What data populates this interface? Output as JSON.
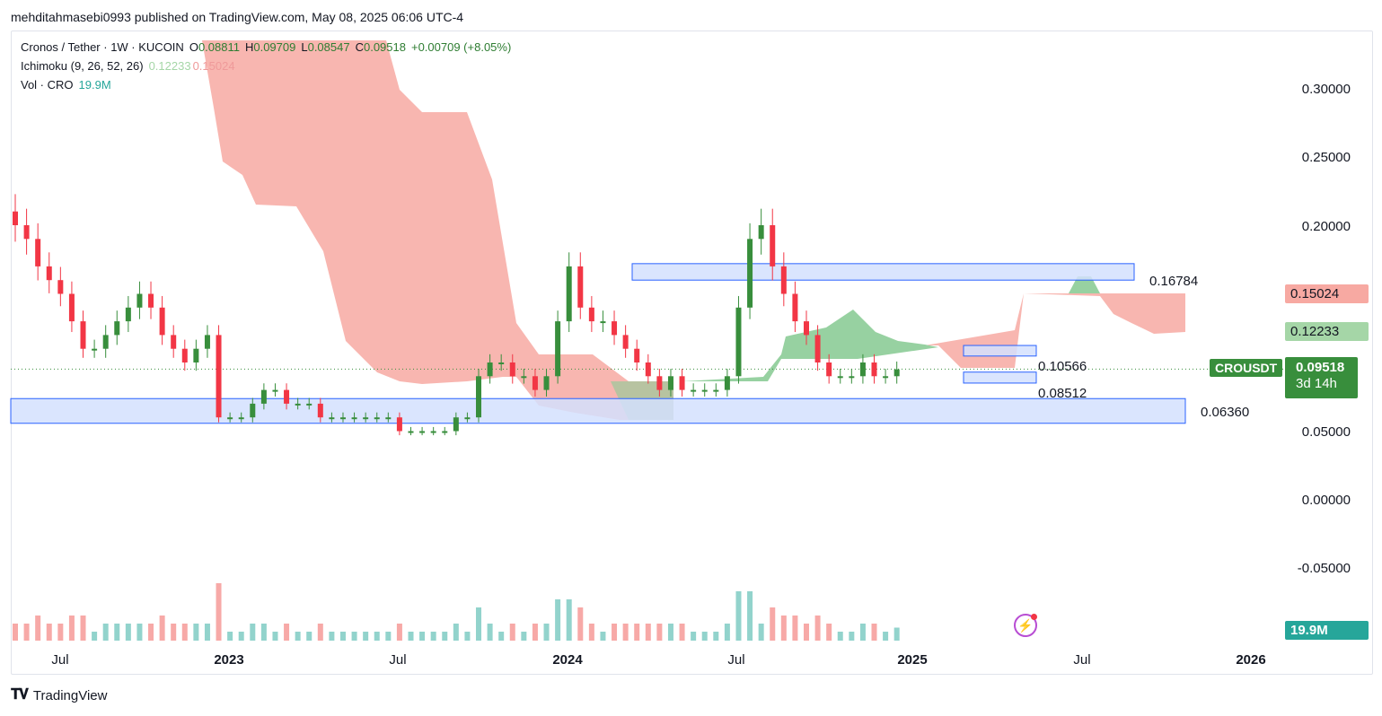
{
  "header": {
    "publisher_line": "mehditahmasebi0993 published on TradingView.com, May 08, 2025 06:06 UTC-4"
  },
  "legend": {
    "symbol": "Cronos / Tether · 1W · KUCOIN",
    "o_label": "O",
    "o_value": "0.08811",
    "h_label": "H",
    "h_value": "0.09709",
    "l_label": "L",
    "l_value": "0.08547",
    "c_label": "C",
    "c_value": "0.09518",
    "change": "+0.00709 (+8.05%)",
    "ichimoku_label": "Ichimoku (9, 26, 52, 26)",
    "ichimoku_v1": "0.12233",
    "ichimoku_v2": "0.15024",
    "vol_label": "Vol · CRO",
    "vol_value": "19.9M"
  },
  "price_boxes": {
    "lead_b": "0.15024",
    "lead_a": "0.12233",
    "symbol_tag": "CROUSDT",
    "last_price": "0.09518",
    "countdown": "3d 14h",
    "volume": "19.9M"
  },
  "annotations": {
    "level_1": "0.16784",
    "level_2": "0.10566",
    "level_3": "0.08512",
    "level_4": "0.06360"
  },
  "footer": {
    "brand": "TradingView",
    "logo": "TV-logo"
  },
  "icons": {
    "assistant": "lightning-bolt-icon"
  },
  "colors": {
    "up": "#26a69a",
    "candle_up": "#388e3c",
    "down": "#f23645",
    "vol_up": "#92d3cc",
    "vol_down": "#f7a9a7",
    "cloud_bear": "#f7a9a2",
    "cloud_bull": "#8ccc97",
    "zone_fill": "#d4e0fe",
    "zone_border": "#2962ff"
  },
  "chart_data": {
    "type": "candlestick",
    "x_axis_labels": [
      "Jul",
      "2023",
      "Jul",
      "2024",
      "Jul",
      "2025",
      "Jul",
      "2026"
    ],
    "y_axis_labels": [
      "0.30000",
      "0.25000",
      "0.20000",
      "0.15000",
      "0.10000",
      "0.05000",
      "0.00000",
      "-0.05000"
    ],
    "ylim": [
      -0.1,
      0.33
    ],
    "grid": false,
    "approx_weekly_closes": [
      0.2,
      0.19,
      0.17,
      0.16,
      0.15,
      0.13,
      0.11,
      0.11,
      0.12,
      0.13,
      0.14,
      0.15,
      0.14,
      0.12,
      0.11,
      0.1,
      0.11,
      0.12,
      0.06,
      0.06,
      0.06,
      0.07,
      0.08,
      0.08,
      0.07,
      0.07,
      0.07,
      0.06,
      0.06,
      0.06,
      0.06,
      0.06,
      0.06,
      0.06,
      0.05,
      0.05,
      0.05,
      0.05,
      0.05,
      0.06,
      0.06,
      0.09,
      0.1,
      0.1,
      0.09,
      0.09,
      0.08,
      0.09,
      0.13,
      0.17,
      0.14,
      0.13,
      0.13,
      0.12,
      0.11,
      0.1,
      0.09,
      0.08,
      0.09,
      0.08,
      0.08,
      0.08,
      0.08,
      0.09,
      0.14,
      0.19,
      0.2,
      0.17,
      0.15,
      0.13,
      0.12,
      0.1,
      0.09,
      0.09,
      0.09,
      0.1,
      0.09,
      0.09,
      0.095
    ],
    "support_resistance_zones": [
      {
        "low": 0.16,
        "high": 0.172
      },
      {
        "low": 0.0557,
        "high": 0.0737
      },
      {
        "low": 0.085,
        "high": 0.093
      },
      {
        "low": 0.1047,
        "high": 0.1124
      }
    ],
    "levels": [
      0.16784,
      0.10566,
      0.08512,
      0.0636
    ],
    "last_close": 0.09518,
    "ichimoku_span_a": 0.12233,
    "ichimoku_span_b": 0.15024,
    "volume_last": "19.9M"
  }
}
